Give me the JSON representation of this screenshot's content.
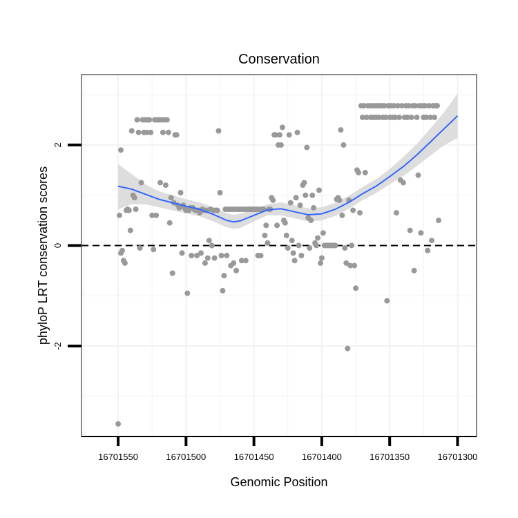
{
  "chart_data": {
    "type": "scatter",
    "title": "Conservation",
    "xlabel": "Genomic Position",
    "ylabel": "phyloP LRT conservation scores",
    "x_reversed": true,
    "xlim": [
      16701577,
      16701286
    ],
    "ylim": [
      -3.8,
      3.4
    ],
    "x_ticks": [
      16701550,
      16701500,
      16701450,
      16701400,
      16701350,
      16701300
    ],
    "y_ticks": [
      -2,
      0,
      2
    ],
    "reference_line": {
      "y": 0,
      "style": "dashed"
    },
    "grid": true,
    "colors": {
      "points": "#999999",
      "smooth": "#3366ff",
      "ribbon": "#d9d9d9",
      "panel_border": "#888888",
      "grid": "#f2f2f2"
    },
    "points": [
      [
        16701550,
        -3.55
      ],
      [
        16701549,
        0.6
      ],
      [
        16701548,
        1.9
      ],
      [
        16701548,
        -0.15
      ],
      [
        16701547,
        -0.1
      ],
      [
        16701546,
        -0.3
      ],
      [
        16701545,
        -0.35
      ],
      [
        16701544,
        0.7
      ],
      [
        16701543,
        0.72
      ],
      [
        16701542,
        0.7
      ],
      [
        16701541,
        0.3
      ],
      [
        16701540,
        2.28
      ],
      [
        16701539,
        1.0
      ],
      [
        16701538,
        0.95
      ],
      [
        16701537,
        0.72
      ],
      [
        16701536,
        2.5
      ],
      [
        16701535,
        2.25
      ],
      [
        16701534,
        -0.05
      ],
      [
        16701533,
        1.25
      ],
      [
        16701532,
        2.5
      ],
      [
        16701531,
        2.25
      ],
      [
        16701530,
        2.5
      ],
      [
        16701529,
        2.25
      ],
      [
        16701528,
        2.5
      ],
      [
        16701527,
        2.5
      ],
      [
        16701526,
        2.25
      ],
      [
        16701525,
        0.6
      ],
      [
        16701524,
        -0.08
      ],
      [
        16701523,
        2.5
      ],
      [
        16701522,
        0.6
      ],
      [
        16701521,
        2.5
      ],
      [
        16701520,
        2.5
      ],
      [
        16701519,
        1.25
      ],
      [
        16701518,
        2.5
      ],
      [
        16701517,
        2.25
      ],
      [
        16701516,
        2.5
      ],
      [
        16701515,
        1.2
      ],
      [
        16701514,
        2.5
      ],
      [
        16701513,
        2.25
      ],
      [
        16701512,
        0.45
      ],
      [
        16701511,
        0.95
      ],
      [
        16701510,
        -0.55
      ],
      [
        16701509,
        0.85
      ],
      [
        16701508,
        2.2
      ],
      [
        16701507,
        2.2
      ],
      [
        16701506,
        0.8
      ],
      [
        16701505,
        0.75
      ],
      [
        16701504,
        1.05
      ],
      [
        16701503,
        -0.15
      ],
      [
        16701502,
        0.8
      ],
      [
        16701501,
        0.75
      ],
      [
        16701500,
        0.7
      ],
      [
        16701499,
        -0.95
      ],
      [
        16701498,
        0.7
      ],
      [
        16701497,
        0.75
      ],
      [
        16701496,
        -0.2
      ],
      [
        16701495,
        0.75
      ],
      [
        16701494,
        0.72
      ],
      [
        16701493,
        0.7
      ],
      [
        16701492,
        -0.2
      ],
      [
        16701491,
        0.7
      ],
      [
        16701490,
        0.65
      ],
      [
        16701489,
        -0.15
      ],
      [
        16701488,
        0.72
      ],
      [
        16701487,
        0.7
      ],
      [
        16701486,
        -0.35
      ],
      [
        16701485,
        0.7
      ],
      [
        16701484,
        -0.25
      ],
      [
        16701483,
        0.1
      ],
      [
        16701482,
        0.72
      ],
      [
        16701481,
        0.0
      ],
      [
        16701480,
        0.7
      ],
      [
        16701479,
        -0.25
      ],
      [
        16701478,
        0.7
      ],
      [
        16701477,
        0.7
      ],
      [
        16701476,
        2.28
      ],
      [
        16701475,
        1.05
      ],
      [
        16701474,
        -0.2
      ],
      [
        16701473,
        -0.9
      ],
      [
        16701472,
        -0.6
      ],
      [
        16701471,
        0.72
      ],
      [
        16701470,
        -0.2
      ],
      [
        16701469,
        0.72
      ],
      [
        16701468,
        0.72
      ],
      [
        16701467,
        -0.4
      ],
      [
        16701466,
        0.72
      ],
      [
        16701465,
        -0.35
      ],
      [
        16701464,
        0.72
      ],
      [
        16701463,
        -0.5
      ],
      [
        16701462,
        0.72
      ],
      [
        16701461,
        0.72
      ],
      [
        16701460,
        0.72
      ],
      [
        16701459,
        -0.3
      ],
      [
        16701458,
        0.72
      ],
      [
        16701457,
        0.72
      ],
      [
        16701456,
        -0.3
      ],
      [
        16701455,
        0.72
      ],
      [
        16701454,
        0.72
      ],
      [
        16701453,
        0.72
      ],
      [
        16701452,
        0.72
      ],
      [
        16701451,
        0.72
      ],
      [
        16701450,
        0.72
      ],
      [
        16701449,
        0.72
      ],
      [
        16701448,
        0.72
      ],
      [
        16701447,
        -0.2
      ],
      [
        16701446,
        0.72
      ],
      [
        16701445,
        -0.2
      ],
      [
        16701444,
        0.72
      ],
      [
        16701443,
        0.72
      ],
      [
        16701442,
        0.2
      ],
      [
        16701441,
        0.4
      ],
      [
        16701440,
        0.05
      ],
      [
        16701439,
        0.72
      ],
      [
        16701438,
        0.72
      ],
      [
        16701437,
        0.95
      ],
      [
        16701436,
        0.9
      ],
      [
        16701435,
        2.2
      ],
      [
        16701434,
        2.2
      ],
      [
        16701433,
        0.4
      ],
      [
        16701432,
        2.0
      ],
      [
        16701431,
        2.2
      ],
      [
        16701430,
        2.0
      ],
      [
        16701429,
        2.35
      ],
      [
        16701428,
        0.5
      ],
      [
        16701427,
        0.45
      ],
      [
        16701426,
        0.2
      ],
      [
        16701425,
        -0.05
      ],
      [
        16701424,
        2.2
      ],
      [
        16701423,
        0.85
      ],
      [
        16701422,
        0.1
      ],
      [
        16701421,
        -0.15
      ],
      [
        16701420,
        -0.3
      ],
      [
        16701419,
        0.95
      ],
      [
        16701418,
        2.25
      ],
      [
        16701417,
        0.0
      ],
      [
        16701416,
        0.8
      ],
      [
        16701415,
        -0.2
      ],
      [
        16701414,
        1.2
      ],
      [
        16701413,
        1.25
      ],
      [
        16701412,
        1.0
      ],
      [
        16701411,
        1.95
      ],
      [
        16701410,
        0.55
      ],
      [
        16701409,
        -0.05
      ],
      [
        16701408,
        0.5
      ],
      [
        16701407,
        1.0
      ],
      [
        16701406,
        0.75
      ],
      [
        16701405,
        0.05
      ],
      [
        16701404,
        0.0
      ],
      [
        16701403,
        0.15
      ],
      [
        16701402,
        1.1
      ],
      [
        16701401,
        -0.35
      ],
      [
        16701400,
        -0.25
      ],
      [
        16701399,
        0.25
      ],
      [
        16701398,
        0.0
      ],
      [
        16701397,
        0.0
      ],
      [
        16701396,
        0.0
      ],
      [
        16701395,
        0.0
      ],
      [
        16701394,
        0.0
      ],
      [
        16701393,
        0.0
      ],
      [
        16701392,
        0.0
      ],
      [
        16701391,
        0.0
      ],
      [
        16701390,
        0.0
      ],
      [
        16701389,
        0.92
      ],
      [
        16701388,
        0.95
      ],
      [
        16701387,
        0.9
      ],
      [
        16701386,
        2.3
      ],
      [
        16701385,
        0.6
      ],
      [
        16701384,
        2.0
      ],
      [
        16701383,
        -0.05
      ],
      [
        16701382,
        -0.35
      ],
      [
        16701381,
        -2.05
      ],
      [
        16701380,
        0.9
      ],
      [
        16701379,
        -0.4
      ],
      [
        16701378,
        0.0
      ],
      [
        16701377,
        0.7
      ],
      [
        16701376,
        -0.4
      ],
      [
        16701375,
        -0.85
      ],
      [
        16701374,
        1.5
      ],
      [
        16701373,
        1.45
      ],
      [
        16701372,
        0.65
      ],
      [
        16701371,
        2.78
      ],
      [
        16701370,
        2.55
      ],
      [
        16701369,
        2.78
      ],
      [
        16701368,
        1.45
      ],
      [
        16701367,
        2.55
      ],
      [
        16701366,
        2.78
      ],
      [
        16701365,
        2.78
      ],
      [
        16701364,
        2.55
      ],
      [
        16701363,
        2.78
      ],
      [
        16701362,
        2.55
      ],
      [
        16701361,
        2.78
      ],
      [
        16701360,
        2.55
      ],
      [
        16701359,
        2.78
      ],
      [
        16701358,
        2.55
      ],
      [
        16701357,
        2.78
      ],
      [
        16701356,
        2.78
      ],
      [
        16701355,
        2.55
      ],
      [
        16701354,
        2.78
      ],
      [
        16701353,
        2.55
      ],
      [
        16701352,
        -1.1
      ],
      [
        16701351,
        2.78
      ],
      [
        16701350,
        2.55
      ],
      [
        16701349,
        2.78
      ],
      [
        16701348,
        2.55
      ],
      [
        16701347,
        2.78
      ],
      [
        16701346,
        2.55
      ],
      [
        16701345,
        0.65
      ],
      [
        16701344,
        2.78
      ],
      [
        16701343,
        2.55
      ],
      [
        16701342,
        1.3
      ],
      [
        16701341,
        2.78
      ],
      [
        16701340,
        1.25
      ],
      [
        16701339,
        2.55
      ],
      [
        16701338,
        2.78
      ],
      [
        16701337,
        2.55
      ],
      [
        16701336,
        2.78
      ],
      [
        16701335,
        0.3
      ],
      [
        16701334,
        2.55
      ],
      [
        16701333,
        2.78
      ],
      [
        16701332,
        -0.5
      ],
      [
        16701331,
        2.78
      ],
      [
        16701330,
        2.55
      ],
      [
        16701329,
        1.4
      ],
      [
        16701328,
        2.78
      ],
      [
        16701327,
        0.25
      ],
      [
        16701326,
        2.78
      ],
      [
        16701325,
        2.55
      ],
      [
        16701324,
        2.78
      ],
      [
        16701323,
        2.55
      ],
      [
        16701322,
        -0.1
      ],
      [
        16701321,
        2.78
      ],
      [
        16701320,
        2.55
      ],
      [
        16701319,
        0.1
      ],
      [
        16701318,
        2.78
      ],
      [
        16701317,
        2.55
      ],
      [
        16701316,
        2.78
      ],
      [
        16701315,
        2.78
      ],
      [
        16701314,
        0.5
      ]
    ],
    "smooth_line": [
      [
        16701550,
        1.18
      ],
      [
        16701540,
        1.12
      ],
      [
        16701530,
        1.02
      ],
      [
        16701520,
        0.92
      ],
      [
        16701510,
        0.85
      ],
      [
        16701500,
        0.78
      ],
      [
        16701490,
        0.72
      ],
      [
        16701480,
        0.62
      ],
      [
        16701470,
        0.5
      ],
      [
        16701465,
        0.47
      ],
      [
        16701460,
        0.49
      ],
      [
        16701450,
        0.6
      ],
      [
        16701440,
        0.71
      ],
      [
        16701430,
        0.73
      ],
      [
        16701420,
        0.67
      ],
      [
        16701410,
        0.61
      ],
      [
        16701400,
        0.63
      ],
      [
        16701390,
        0.72
      ],
      [
        16701380,
        0.86
      ],
      [
        16701370,
        1.03
      ],
      [
        16701360,
        1.18
      ],
      [
        16701350,
        1.37
      ],
      [
        16701340,
        1.57
      ],
      [
        16701330,
        1.8
      ],
      [
        16701320,
        2.06
      ],
      [
        16701310,
        2.32
      ],
      [
        16701300,
        2.58
      ]
    ],
    "smooth_ribbon": {
      "upper": [
        [
          16701550,
          1.62
        ],
        [
          16701540,
          1.42
        ],
        [
          16701530,
          1.22
        ],
        [
          16701520,
          1.08
        ],
        [
          16701510,
          1.0
        ],
        [
          16701500,
          0.92
        ],
        [
          16701490,
          0.86
        ],
        [
          16701480,
          0.76
        ],
        [
          16701470,
          0.64
        ],
        [
          16701465,
          0.61
        ],
        [
          16701460,
          0.63
        ],
        [
          16701450,
          0.72
        ],
        [
          16701440,
          0.82
        ],
        [
          16701430,
          0.86
        ],
        [
          16701420,
          0.8
        ],
        [
          16701410,
          0.74
        ],
        [
          16701400,
          0.76
        ],
        [
          16701390,
          0.85
        ],
        [
          16701380,
          0.99
        ],
        [
          16701370,
          1.16
        ],
        [
          16701360,
          1.32
        ],
        [
          16701350,
          1.52
        ],
        [
          16701340,
          1.76
        ],
        [
          16701330,
          2.02
        ],
        [
          16701320,
          2.33
        ],
        [
          16701310,
          2.65
        ],
        [
          16701300,
          3.02
        ]
      ],
      "lower": [
        [
          16701550,
          0.72
        ],
        [
          16701540,
          0.82
        ],
        [
          16701530,
          0.82
        ],
        [
          16701520,
          0.76
        ],
        [
          16701510,
          0.7
        ],
        [
          16701500,
          0.64
        ],
        [
          16701490,
          0.58
        ],
        [
          16701480,
          0.48
        ],
        [
          16701470,
          0.36
        ],
        [
          16701465,
          0.33
        ],
        [
          16701460,
          0.35
        ],
        [
          16701450,
          0.48
        ],
        [
          16701440,
          0.6
        ],
        [
          16701430,
          0.6
        ],
        [
          16701420,
          0.54
        ],
        [
          16701410,
          0.48
        ],
        [
          16701400,
          0.5
        ],
        [
          16701390,
          0.59
        ],
        [
          16701380,
          0.73
        ],
        [
          16701370,
          0.9
        ],
        [
          16701360,
          1.04
        ],
        [
          16701350,
          1.22
        ],
        [
          16701340,
          1.38
        ],
        [
          16701330,
          1.58
        ],
        [
          16701320,
          1.79
        ],
        [
          16701310,
          1.99
        ],
        [
          16701300,
          2.14
        ]
      ]
    }
  }
}
